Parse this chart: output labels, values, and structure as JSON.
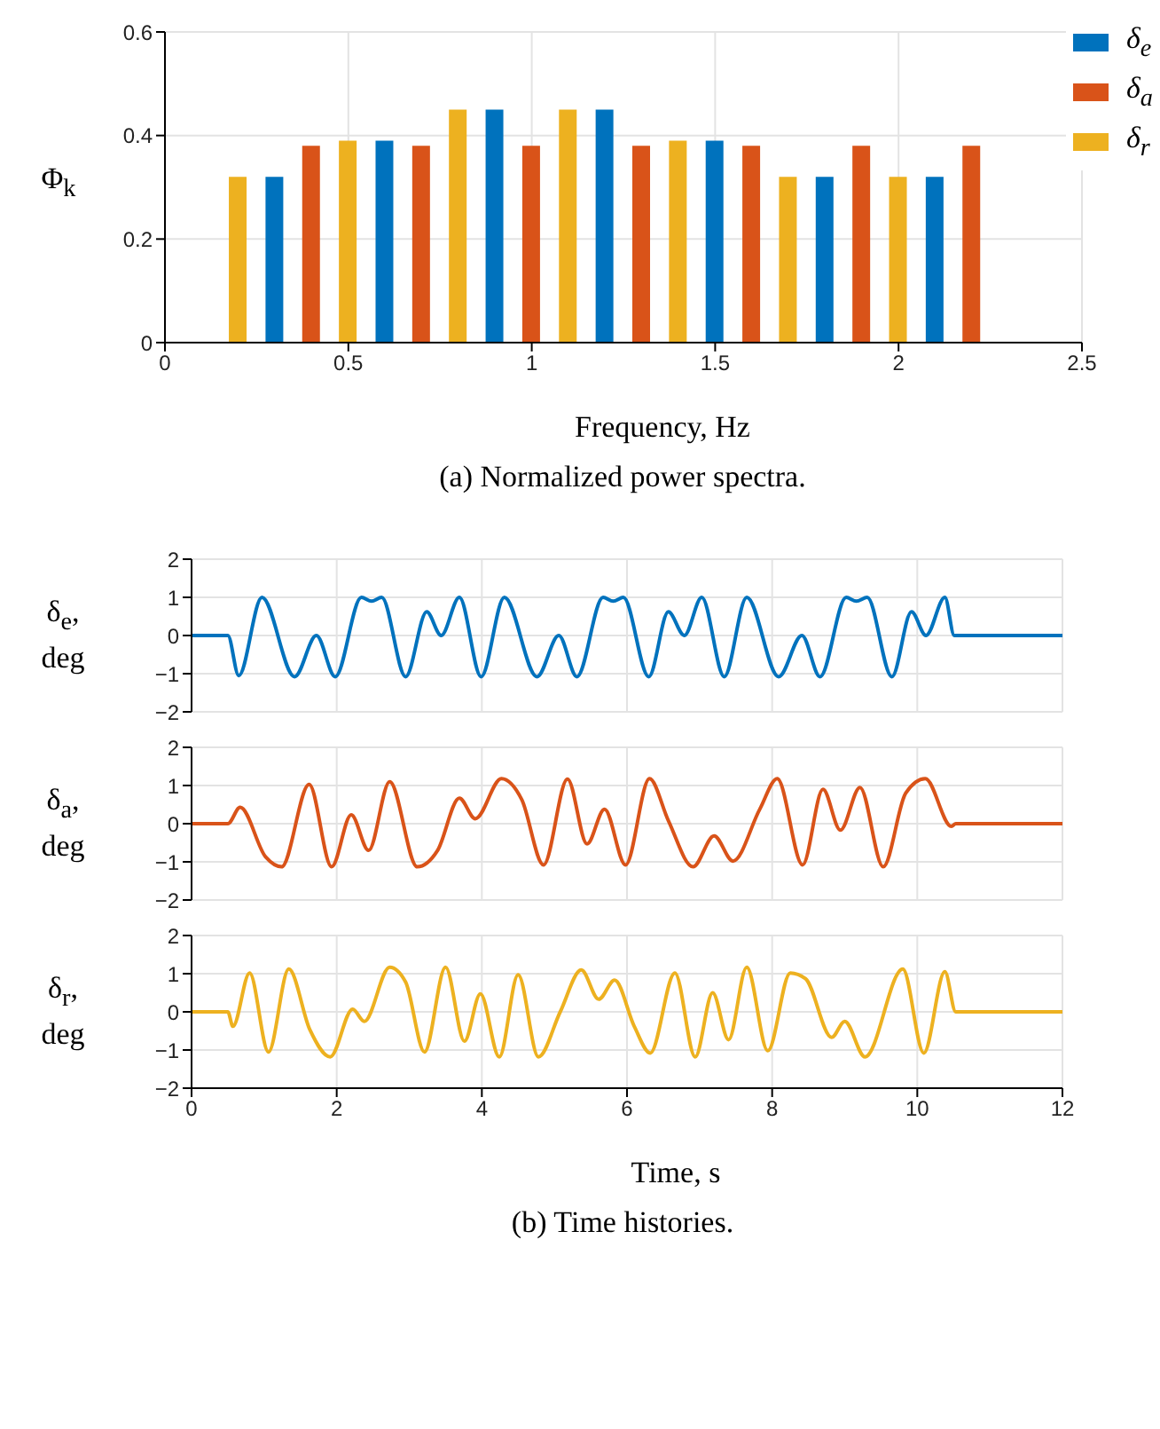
{
  "chart_data": [
    {
      "type": "bar",
      "xlabel": "Frequency, Hz",
      "ylabel": "Φ$_{k}$",
      "xlim": [
        0,
        2.5
      ],
      "xticks": [
        0,
        0.5,
        1,
        1.5,
        2,
        2.5
      ],
      "ylim": [
        0,
        0.6
      ],
      "yticks": [
        0,
        0.2,
        0.4,
        0.6
      ],
      "grid": true,
      "legend": "top right",
      "annotations": [
        "(a) Normalized power spectra."
      ],
      "series": [
        {
          "name": "δ$_{e}$",
          "color": "#0072bd",
          "x": [
            0.3,
            0.6,
            0.9,
            1.2,
            1.5,
            1.8,
            2.1
          ],
          "values": [
            0.32,
            0.39,
            0.45,
            0.45,
            0.39,
            0.32,
            0.32
          ]
        },
        {
          "name": "δ$_{a}$",
          "color": "#d95319",
          "x": [
            0.4,
            0.7,
            1.0,
            1.3,
            1.6,
            1.9,
            2.2
          ],
          "values": [
            0.38,
            0.38,
            0.38,
            0.38,
            0.38,
            0.38,
            0.38
          ]
        },
        {
          "name": "δ$_{r}$",
          "color": "#edb120",
          "x": [
            0.2,
            0.5,
            0.8,
            1.1,
            1.4,
            1.7,
            2.0
          ],
          "values": [
            0.32,
            0.39,
            0.45,
            0.45,
            0.39,
            0.32,
            0.32
          ]
        }
      ]
    },
    {
      "type": "line",
      "ylabel": "δ$_{e}$, deg",
      "xlim": [
        0,
        12
      ],
      "xticks": [
        0,
        2,
        4,
        6,
        8,
        10,
        12
      ],
      "ylim": [
        -2,
        2
      ],
      "yticks": [
        -2,
        -1,
        0,
        1,
        2
      ],
      "grid": true,
      "tick_labels": "y",
      "series": [
        {
          "color": "#0072bd",
          "x": [
            0,
            0.5,
            0.65,
            0.97,
            1.42,
            1.72,
            1.98,
            2.34,
            2.48,
            2.62,
            2.95,
            3.24,
            3.44,
            3.69,
            3.99,
            4.31,
            4.76,
            5.06,
            5.31,
            5.67,
            5.81,
            5.95,
            6.3,
            6.57,
            6.79,
            7.03,
            7.34,
            7.65,
            8.09,
            8.41,
            8.66,
            9.02,
            9.16,
            9.31,
            9.65,
            9.92,
            10.12,
            10.38,
            10.51,
            12
          ],
          "values": [
            0,
            0,
            -1.05,
            1.0,
            -1.08,
            0,
            -1.08,
            1.0,
            0.9,
            1.0,
            -1.08,
            0.62,
            0,
            1.0,
            -1.08,
            1.0,
            -1.08,
            0,
            -1.08,
            1.0,
            0.9,
            1.0,
            -1.08,
            0.62,
            0,
            1.0,
            -1.08,
            1.0,
            -1.08,
            0,
            -1.08,
            1.0,
            0.9,
            1.0,
            -1.08,
            0.62,
            0,
            1.0,
            0,
            0
          ]
        }
      ]
    },
    {
      "type": "line",
      "ylabel": "δ$_{a}$, deg",
      "xlim": [
        0,
        12
      ],
      "xticks": [
        0,
        2,
        4,
        6,
        8,
        10,
        12
      ],
      "ylim": [
        -2,
        2
      ],
      "yticks": [
        -2,
        -1,
        0,
        1,
        2
      ],
      "grid": true,
      "tick_labels": "y",
      "series": [
        {
          "color": "#d95319",
          "x": [
            0,
            0.5,
            0.67,
            1.02,
            1.24,
            1.62,
            1.93,
            2.2,
            2.44,
            2.73,
            3.11,
            3.39,
            3.69,
            3.91,
            4.27,
            4.55,
            4.85,
            5.18,
            5.45,
            5.69,
            5.98,
            6.31,
            6.57,
            6.91,
            7.2,
            7.46,
            7.83,
            8.07,
            8.42,
            8.7,
            8.94,
            9.21,
            9.53,
            9.84,
            10.11,
            10.47,
            10.53,
            12
          ],
          "values": [
            0,
            0,
            0.43,
            -0.87,
            -1.13,
            1.03,
            -1.13,
            0.23,
            -0.7,
            1.1,
            -1.13,
            -0.7,
            0.67,
            0.13,
            1.18,
            0.63,
            -1.08,
            1.17,
            -0.53,
            0.38,
            -1.08,
            1.18,
            0.08,
            -1.13,
            -0.32,
            -0.98,
            0.38,
            1.18,
            -1.08,
            0.9,
            -0.17,
            0.95,
            -1.13,
            0.8,
            1.18,
            -0.07,
            0,
            0
          ]
        }
      ]
    },
    {
      "type": "line",
      "ylabel": "δ$_{r}$, deg",
      "xlabel": "Time, s",
      "xlim": [
        0,
        12
      ],
      "xticks": [
        0,
        2,
        4,
        6,
        8,
        10,
        12
      ],
      "ylim": [
        -2,
        2
      ],
      "yticks": [
        -2,
        -1,
        0,
        1,
        2
      ],
      "grid": true,
      "annotations": [
        "(b) Time histories."
      ],
      "series": [
        {
          "color": "#edb120",
          "x": [
            0,
            0.5,
            0.57,
            0.8,
            1.06,
            1.34,
            1.63,
            1.91,
            2.22,
            2.38,
            2.73,
            2.95,
            3.21,
            3.5,
            3.76,
            3.98,
            4.24,
            4.5,
            4.78,
            5.08,
            5.37,
            5.61,
            5.83,
            6.1,
            6.32,
            6.66,
            6.94,
            7.18,
            7.4,
            7.65,
            7.94,
            8.25,
            8.46,
            8.82,
            9.0,
            9.28,
            9.8,
            10.09,
            10.38,
            10.53,
            12
          ],
          "values": [
            0,
            0,
            -0.38,
            1.02,
            -1.05,
            1.12,
            -0.47,
            -1.18,
            0.07,
            -0.25,
            1.17,
            0.78,
            -1.05,
            1.17,
            -0.77,
            0.47,
            -1.18,
            0.97,
            -1.18,
            0,
            1.1,
            0.33,
            0.83,
            -0.38,
            -1.08,
            1.02,
            -1.18,
            0.5,
            -0.73,
            1.17,
            -1.02,
            1.02,
            0.87,
            -0.67,
            -0.25,
            -1.18,
            1.12,
            -1.08,
            1.05,
            0,
            0
          ]
        }
      ]
    }
  ]
}
